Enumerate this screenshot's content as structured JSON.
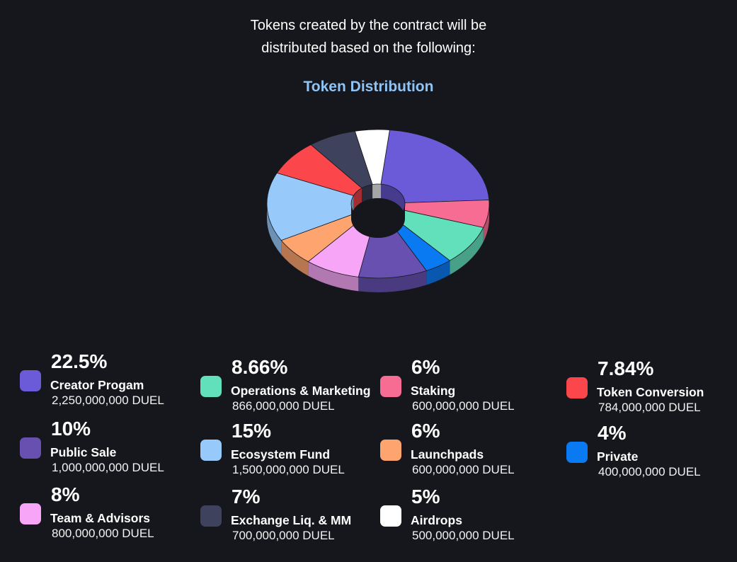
{
  "intro": {
    "line1": "Tokens created by the contract will be",
    "line2": "distributed based on the following:"
  },
  "chart_data": {
    "type": "pie",
    "title": "Token Distribution",
    "unit": "DUEL",
    "slices": [
      {
        "label": "Creator Progam",
        "percent": "22.5%",
        "value": 22.5,
        "amount": "2,250,000,000 DUEL",
        "color": "#6c5bd8"
      },
      {
        "label": "Staking",
        "percent": "6%",
        "value": 6,
        "amount": "600,000,000 DUEL",
        "color": "#f76c92"
      },
      {
        "label": "Operations & Marketing",
        "percent": "8.66%",
        "value": 8.66,
        "amount": "866,000,000 DUEL",
        "color": "#62e0bb"
      },
      {
        "label": "Private",
        "percent": "4%",
        "value": 4,
        "amount": "400,000,000 DUEL",
        "color": "#0a7af2"
      },
      {
        "label": "Public Sale",
        "percent": "10%",
        "value": 10,
        "amount": "1,000,000,000 DUEL",
        "color": "#6750b0"
      },
      {
        "label": "Team & Advisors",
        "percent": "8%",
        "value": 8,
        "amount": "800,000,000 DUEL",
        "color": "#f7a6f7"
      },
      {
        "label": "Launchpads",
        "percent": "6%",
        "value": 6,
        "amount": "600,000,000 DUEL",
        "color": "#fda46f"
      },
      {
        "label": "Ecosystem Fund",
        "percent": "15%",
        "value": 15,
        "amount": "1,500,000,000 DUEL",
        "color": "#97c9fb"
      },
      {
        "label": "Token Conversion",
        "percent": "7.84%",
        "value": 7.84,
        "amount": "784,000,000 DUEL",
        "color": "#fb464b"
      },
      {
        "label": "Exchange Liq. & MM",
        "percent": "7%",
        "value": 7,
        "amount": "700,000,000 DUEL",
        "color": "#3f425d"
      },
      {
        "label": "Airdrops",
        "percent": "5%",
        "value": 5,
        "amount": "500,000,000 DUEL",
        "color": "#ffffff"
      }
    ]
  },
  "legend_columns": [
    [
      0,
      4,
      5
    ],
    [
      2,
      7,
      9
    ],
    [
      1,
      6,
      10
    ],
    [
      8,
      3
    ]
  ]
}
